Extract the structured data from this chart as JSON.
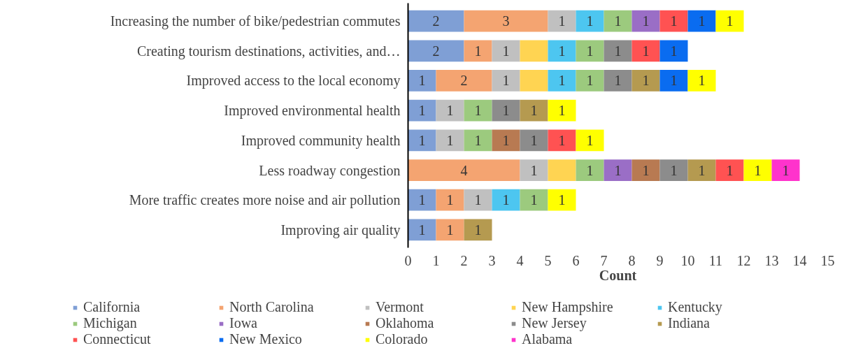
{
  "chart_data": {
    "type": "bar",
    "orientation": "horizontal",
    "stacked": true,
    "xlabel": "Count",
    "xlim": [
      0,
      15
    ],
    "xticks": [
      0,
      1,
      2,
      3,
      4,
      5,
      6,
      7,
      8,
      9,
      10,
      11,
      12,
      13,
      14,
      15
    ],
    "grid": false,
    "legend": "bottom",
    "data_labels": true,
    "categories": [
      "Increasing the number of bike/pedestrian commutes",
      "Creating tourism destinations, activities, and…",
      "Improved access to the local economy",
      "Improved environmental health",
      "Improved community health",
      "Less roadway congestion",
      "More traffic creates more noise and air pollution",
      "Improving air quality"
    ],
    "series": [
      {
        "name": "California",
        "color": "#7f9fd5",
        "values": [
          2,
          2,
          1,
          1,
          1,
          null,
          1,
          1
        ]
      },
      {
        "name": "North Carolina",
        "color": "#f4a471",
        "values": [
          3,
          1,
          2,
          null,
          null,
          4,
          1,
          1
        ]
      },
      {
        "name": "Vermont",
        "color": "#c0c0c0",
        "values": [
          1,
          1,
          1,
          1,
          1,
          1,
          1,
          null
        ]
      },
      {
        "name": "New Hampshire",
        "color": "#ffd452",
        "values": [
          null,
          1,
          1,
          null,
          null,
          1,
          null,
          null
        ],
        "value_labels": [
          null,
          null,
          null,
          null,
          null,
          null,
          null,
          null
        ]
      },
      {
        "name": "Kentucky",
        "color": "#4dc6f0",
        "values": [
          1,
          1,
          1,
          null,
          null,
          null,
          1,
          null
        ]
      },
      {
        "name": "Michigan",
        "color": "#9cca7e",
        "values": [
          1,
          1,
          1,
          1,
          1,
          1,
          1,
          null
        ]
      },
      {
        "name": "Iowa",
        "color": "#9a6ec6",
        "values": [
          1,
          null,
          null,
          null,
          null,
          1,
          null,
          null
        ]
      },
      {
        "name": "Oklahoma",
        "color": "#b87a52",
        "values": [
          null,
          null,
          null,
          null,
          1,
          1,
          null,
          null
        ]
      },
      {
        "name": "New Jersey",
        "color": "#8c8c8c",
        "values": [
          null,
          1,
          1,
          1,
          1,
          1,
          null,
          null
        ]
      },
      {
        "name": "Indiana",
        "color": "#b59a50",
        "values": [
          null,
          null,
          1,
          1,
          null,
          1,
          null,
          1
        ]
      },
      {
        "name": "Connecticut",
        "color": "#ff5252",
        "values": [
          1,
          1,
          null,
          null,
          1,
          1,
          null,
          null
        ]
      },
      {
        "name": "New Mexico",
        "color": "#0a6cf0",
        "values": [
          1,
          1,
          1,
          null,
          null,
          null,
          null,
          null
        ]
      },
      {
        "name": "Colorado",
        "color": "#ffff00",
        "values": [
          1,
          null,
          1,
          1,
          1,
          1,
          1,
          null
        ]
      },
      {
        "name": "Alabama",
        "color": "#ff33cc",
        "values": [
          null,
          null,
          null,
          null,
          null,
          1,
          null,
          null
        ]
      }
    ]
  }
}
